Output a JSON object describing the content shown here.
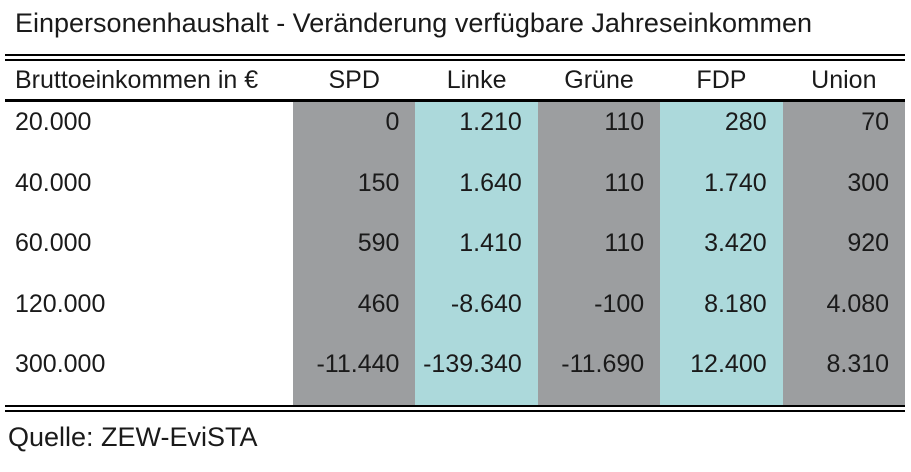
{
  "title": "Einpersonenhaushalt - Veränderung verfügbare Jahreseinkommen",
  "table": {
    "header": {
      "label": "Bruttoeinkommen in €",
      "parties": [
        "SPD",
        "Linke",
        "Grüne",
        "FDP",
        "Union"
      ]
    },
    "party_ids": [
      "spd",
      "linke",
      "gruene",
      "fdp",
      "union"
    ],
    "column_colors": [
      "#9c9ea0",
      "#acd9db",
      "#9c9ea0",
      "#acd9db",
      "#9c9ea0"
    ],
    "rows": [
      {
        "income": "20.000",
        "values": [
          "0",
          "1.210",
          "110",
          "280",
          "70"
        ]
      },
      {
        "income": "40.000",
        "values": [
          "150",
          "1.640",
          "110",
          "1.740",
          "300"
        ]
      },
      {
        "income": "60.000",
        "values": [
          "590",
          "1.410",
          "110",
          "3.420",
          "920"
        ]
      },
      {
        "income": "120.000",
        "values": [
          "460",
          "-8.640",
          "-100",
          "8.180",
          "4.080"
        ]
      },
      {
        "income": "300.000",
        "values": [
          "-11.440",
          "-139.340",
          "-11.690",
          "12.400",
          "8.310"
        ]
      }
    ]
  },
  "source": "Quelle: ZEW-EviSTA",
  "chart_data": {
    "type": "table",
    "title": "Einpersonenhaushalt - Veränderung verfügbare Jahreseinkommen",
    "columns": [
      "Bruttoeinkommen in €",
      "SPD",
      "Linke",
      "Grüne",
      "FDP",
      "Union"
    ],
    "rows": [
      [
        20000,
        0,
        1210,
        110,
        280,
        70
      ],
      [
        40000,
        150,
        1640,
        110,
        1740,
        300
      ],
      [
        60000,
        590,
        1410,
        110,
        3420,
        920
      ],
      [
        120000,
        460,
        -8640,
        -100,
        8180,
        4080
      ],
      [
        300000,
        -11440,
        -139340,
        -11690,
        12400,
        8310
      ]
    ],
    "source": "Quelle: ZEW-EviSTA"
  }
}
